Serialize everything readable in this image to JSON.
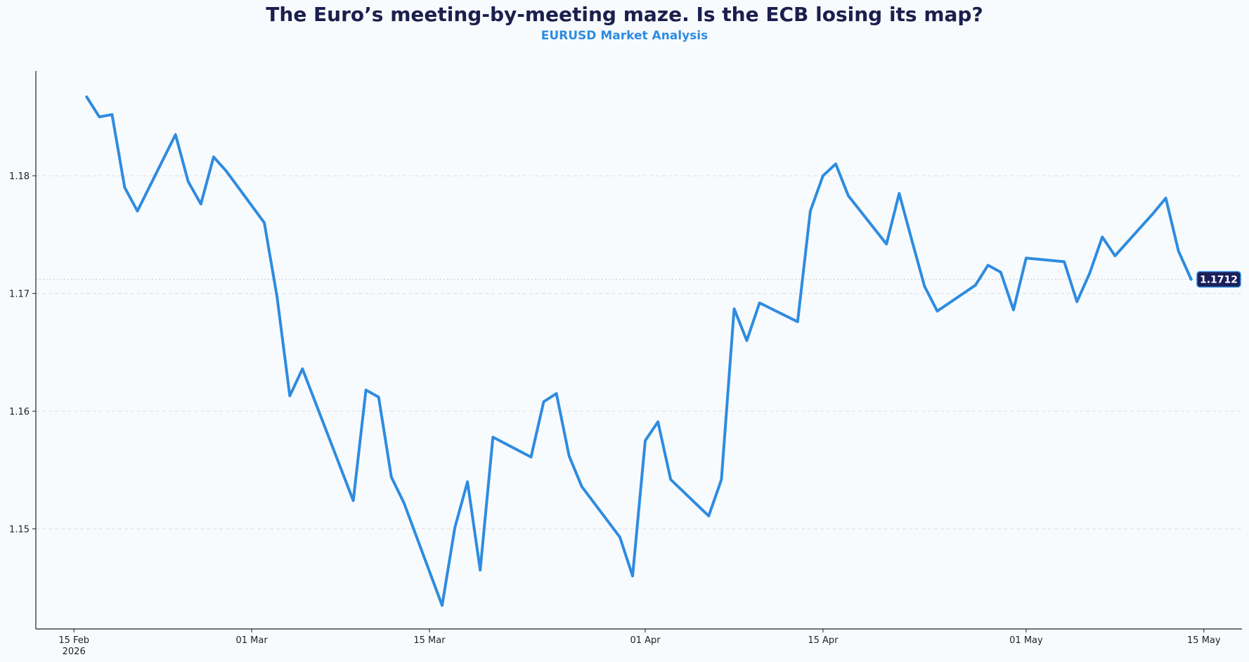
{
  "title": "The Euro’s meeting-by-meeting maze. Is the ECB losing its map?",
  "subtitle": "EURUSD Market Analysis",
  "colors": {
    "line": "#2e8ce0",
    "title": "#1b1f4d",
    "subtitle": "#2e8ce0",
    "badge_bg": "#1b1f5a",
    "grid": "#d9dde3",
    "background": "#f8fbfe"
  },
  "chart_data": {
    "type": "line",
    "x_axis": "dates",
    "xlim": [
      "2026-02-12",
      "2026-05-18"
    ],
    "ylim": [
      1.1415,
      1.1889
    ],
    "grid": "horizontal dashed",
    "x_ticks": [
      {
        "date": "2026-02-15",
        "label": "15 Feb",
        "sublabel": "2026"
      },
      {
        "date": "2026-03-01",
        "label": "01 Mar"
      },
      {
        "date": "2026-03-15",
        "label": "15 Mar"
      },
      {
        "date": "2026-04-01",
        "label": "01 Apr"
      },
      {
        "date": "2026-04-15",
        "label": "15 Apr"
      },
      {
        "date": "2026-05-01",
        "label": "01 May"
      },
      {
        "date": "2026-05-15",
        "label": "15 May"
      }
    ],
    "y_ticks": [
      {
        "value": 1.15,
        "label": "1.15"
      },
      {
        "value": 1.16,
        "label": "1.16"
      },
      {
        "value": 1.17,
        "label": "1.17"
      },
      {
        "value": 1.18,
        "label": "1.18"
      }
    ],
    "last_value_label": "1.1712",
    "last_value": 1.1712,
    "series": [
      {
        "points": [
          [
            "2026-02-16",
            1.1867
          ],
          [
            "2026-02-17",
            1.185
          ],
          [
            "2026-02-18",
            1.1852
          ],
          [
            "2026-02-19",
            1.179
          ],
          [
            "2026-02-20",
            1.177
          ],
          [
            "2026-02-23",
            1.1835
          ],
          [
            "2026-02-24",
            1.1795
          ],
          [
            "2026-02-25",
            1.1776
          ],
          [
            "2026-02-26",
            1.1816
          ],
          [
            "2026-02-27",
            1.1804
          ],
          [
            "2026-03-02",
            1.176
          ],
          [
            "2026-03-03",
            1.1697
          ],
          [
            "2026-03-04",
            1.1613
          ],
          [
            "2026-03-05",
            1.1636
          ],
          [
            "2026-03-09",
            1.1524
          ],
          [
            "2026-03-10",
            1.1618
          ],
          [
            "2026-03-11",
            1.1612
          ],
          [
            "2026-03-12",
            1.1544
          ],
          [
            "2026-03-13",
            1.1522
          ],
          [
            "2026-03-16",
            1.1435
          ],
          [
            "2026-03-17",
            1.1501
          ],
          [
            "2026-03-18",
            1.154
          ],
          [
            "2026-03-19",
            1.1465
          ],
          [
            "2026-03-20",
            1.1578
          ],
          [
            "2026-03-23",
            1.1561
          ],
          [
            "2026-03-24",
            1.1608
          ],
          [
            "2026-03-25",
            1.1615
          ],
          [
            "2026-03-26",
            1.1562
          ],
          [
            "2026-03-27",
            1.1536
          ],
          [
            "2026-03-30",
            1.1493
          ],
          [
            "2026-03-31",
            1.146
          ],
          [
            "2026-04-01",
            1.1575
          ],
          [
            "2026-04-02",
            1.1591
          ],
          [
            "2026-04-03",
            1.1542
          ],
          [
            "2026-04-06",
            1.1511
          ],
          [
            "2026-04-07",
            1.1542
          ],
          [
            "2026-04-08",
            1.1687
          ],
          [
            "2026-04-09",
            1.166
          ],
          [
            "2026-04-10",
            1.1692
          ],
          [
            "2026-04-13",
            1.1676
          ],
          [
            "2026-04-14",
            1.177
          ],
          [
            "2026-04-15",
            1.18
          ],
          [
            "2026-04-16",
            1.181
          ],
          [
            "2026-04-17",
            1.1783
          ],
          [
            "2026-04-20",
            1.1742
          ],
          [
            "2026-04-21",
            1.1785
          ],
          [
            "2026-04-22",
            1.1745
          ],
          [
            "2026-04-23",
            1.1706
          ],
          [
            "2026-04-24",
            1.1685
          ],
          [
            "2026-04-27",
            1.1707
          ],
          [
            "2026-04-28",
            1.1724
          ],
          [
            "2026-04-29",
            1.1718
          ],
          [
            "2026-04-30",
            1.1686
          ],
          [
            "2026-05-01",
            1.173
          ],
          [
            "2026-05-04",
            1.1727
          ],
          [
            "2026-05-05",
            1.1693
          ],
          [
            "2026-05-06",
            1.1717
          ],
          [
            "2026-05-07",
            1.1748
          ],
          [
            "2026-05-08",
            1.1732
          ],
          [
            "2026-05-11",
            1.1768
          ],
          [
            "2026-05-12",
            1.1781
          ],
          [
            "2026-05-13",
            1.1736
          ],
          [
            "2026-05-14",
            1.1712
          ]
        ]
      }
    ]
  }
}
